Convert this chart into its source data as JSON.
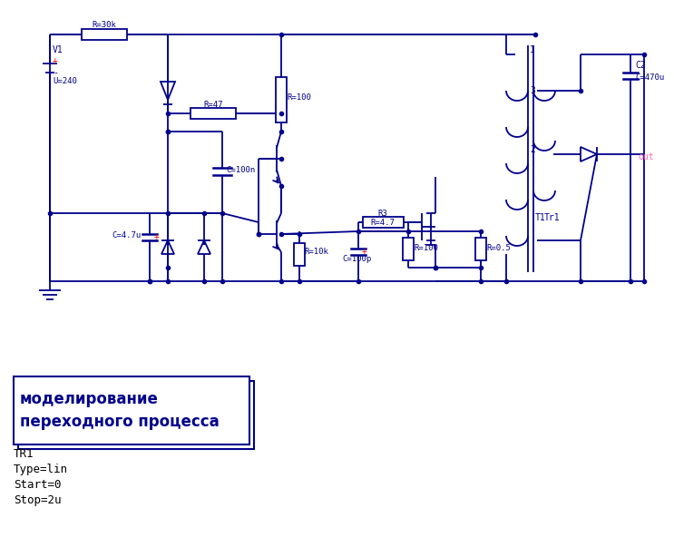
{
  "bg_color": "#ffffff",
  "circuit_color": "#00008B",
  "red_color": "#FF0000",
  "pink_color": "#FF69B4",
  "title": "моделирование\nпереходного процесса",
  "sim_lines": [
    "TR1",
    "Type=lin",
    "Start=0",
    "Stop=2u"
  ],
  "fig_width": 7.43,
  "fig_height": 6.03,
  "dpi": 100
}
